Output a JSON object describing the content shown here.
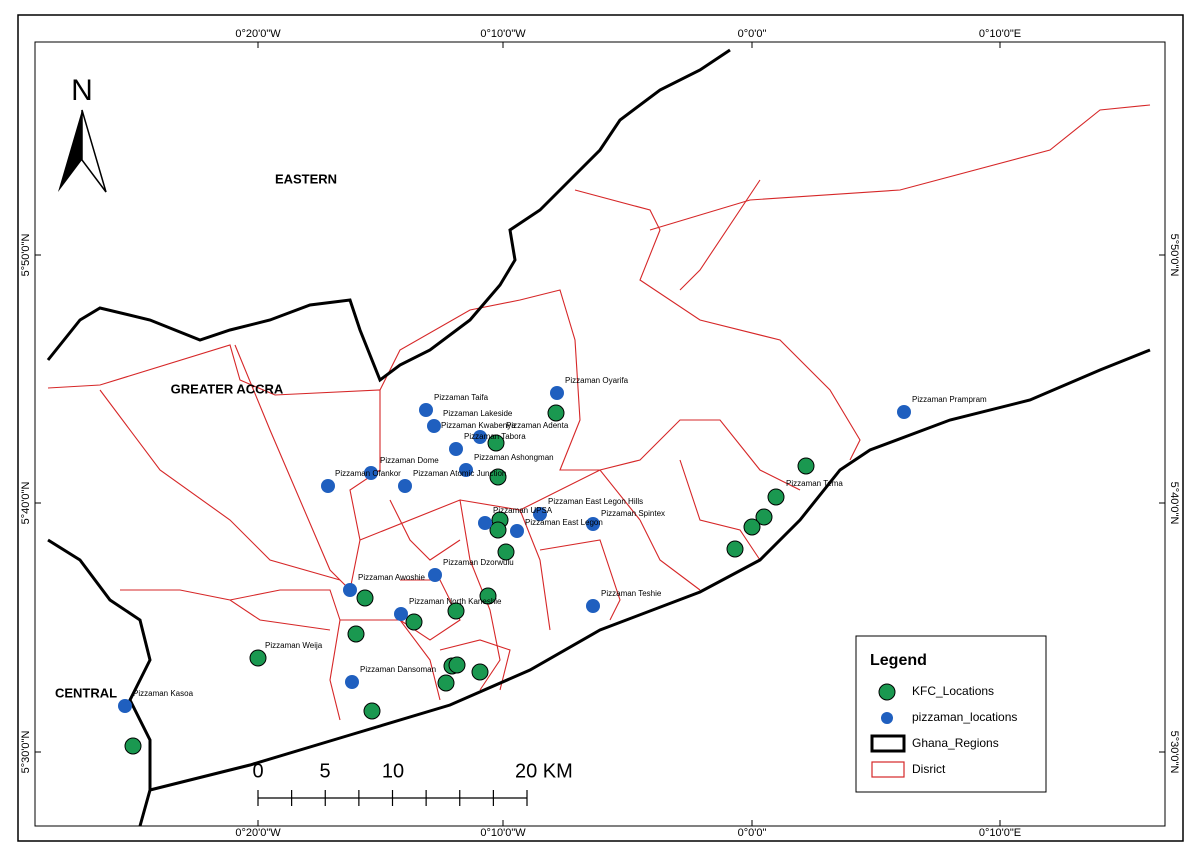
{
  "north": "N",
  "longitudes": [
    "0°20'0\"W",
    "0°10'0\"W",
    "0°0'0\"",
    "0°10'0\"E"
  ],
  "latitudes": [
    "5°50'0\"N",
    "5°40'0\"N",
    "5°30'0\"N"
  ],
  "regions": [
    "EASTERN",
    "GREATER ACCRA",
    "CENTRAL"
  ],
  "place_labels": [
    "Pizzaman Oyarifa",
    "Pizzaman Taifa",
    "Pizzaman Lakeside",
    "Pizzaman Kwabenya",
    "Pizzaman Adenta",
    "Pizzaman Tabora",
    "Pizzaman Dome",
    "Pizzaman Ashongman",
    "Pizzaman Ofankor",
    "Pizzaman Atomic Junction",
    "Pizzaman East Legon Hills",
    "Pizzaman UPSA",
    "Pizzaman Spintex",
    "Pizzaman East Legon",
    "Pizzaman Dzorwulu",
    "Pizzaman Awoshie",
    "Pizzaman North Kaneshie",
    "Pizzaman Teshie",
    "Pizzaman Weija",
    "Pizzaman Dansoman",
    "Pizzaman Kasoa",
    "Pizzaman Tema",
    "Pizzaman Prampram"
  ],
  "scale_bar": {
    "labels": [
      "0",
      "5",
      "10",
      "20 KM"
    ]
  },
  "legend": {
    "title": "Legend",
    "items": [
      "KFC_Locations",
      "pizzaman_locations",
      "Ghana_Regions",
      "Disrict"
    ]
  }
}
